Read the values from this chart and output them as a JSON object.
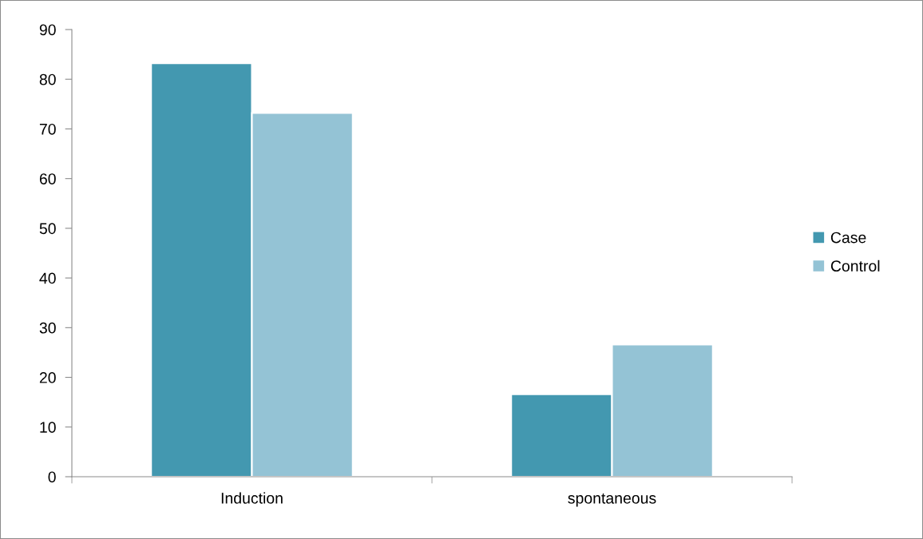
{
  "chart_data": {
    "type": "bar",
    "categories": [
      "Induction",
      "spontaneous"
    ],
    "series": [
      {
        "name": "Case",
        "color": "#4398b0",
        "values": [
          83.2,
          16.6
        ]
      },
      {
        "name": "Control",
        "color": "#94c3d5",
        "values": [
          73.2,
          26.6
        ]
      }
    ],
    "ylim": [
      0,
      90
    ],
    "yticks": [
      0,
      10,
      20,
      30,
      40,
      50,
      60,
      70,
      80,
      90
    ],
    "grid": false,
    "legend": "right"
  }
}
